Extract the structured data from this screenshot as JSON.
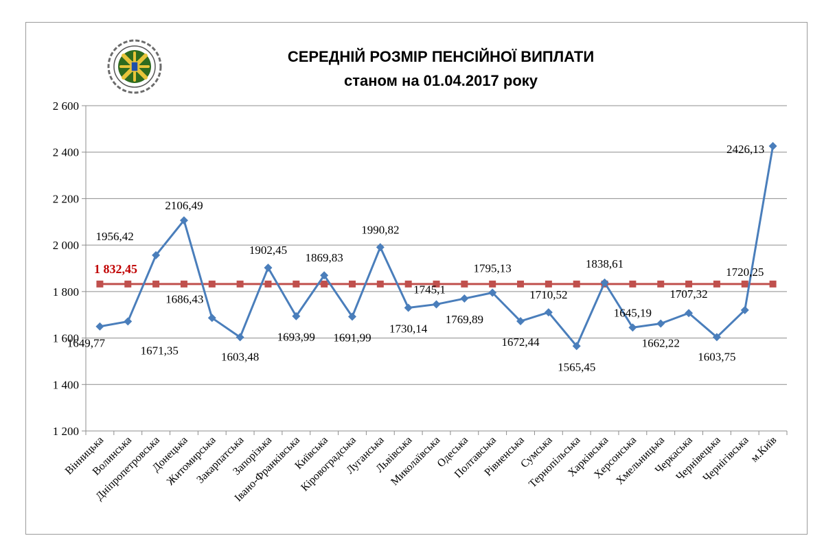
{
  "chart_data": {
    "type": "line",
    "title": "СЕРЕДНІЙ РОЗМІР ПЕНСІЙНОЇ ВИПЛАТИ",
    "subtitle": "станом на 01.04.2017 року",
    "ylim": [
      1200,
      2600
    ],
    "yticks": [
      1200,
      1400,
      1600,
      1800,
      2000,
      2200,
      2400,
      2600
    ],
    "ytick_labels": [
      "1 200",
      "1 400",
      "1 600",
      "1 800",
      "2 000",
      "2 200",
      "2 400",
      "2 600"
    ],
    "grid": true,
    "categories": [
      "Вінницька",
      "Волинська",
      "Дніпропетровська",
      "Донецька",
      "Житомирська",
      "Закарпатська",
      "Запорізька",
      "Івано-Франківська",
      "Київська",
      "Кіровоградська",
      "Луганська",
      "Львівська",
      "Миколаївська",
      "Одеська",
      "Полтавська",
      "Рівненська",
      "Сумська",
      "Тернопільська",
      "Харківська",
      "Херсонська",
      "Хмельницька",
      "Черкаська",
      "Чернівецька",
      "Чернігівська",
      "м.Київ"
    ],
    "series": [
      {
        "color": "#4a7ebb",
        "marker": "diamond",
        "values": [
          1649.77,
          1671.35,
          1956.42,
          2106.49,
          1686.43,
          1603.48,
          1902.45,
          1693.99,
          1869.83,
          1691.99,
          1990.82,
          1730.14,
          1745.1,
          1769.89,
          1795.13,
          1672.44,
          1710.52,
          1565.45,
          1838.61,
          1645.19,
          1662.22,
          1707.32,
          1603.75,
          1720.25,
          2426.13
        ],
        "labels": [
          "1649,77",
          "1671,35",
          "1956,42",
          "2106,49",
          "1686,43",
          "1603,48",
          "1902,45",
          "1693,99",
          "1869,83",
          "1691,99",
          "1990,82",
          "1730,14",
          "1745,1",
          "1769,89",
          "1795,13",
          "1672,44",
          "1710,52",
          "1565,45",
          "1838,61",
          "1645,19",
          "1662,22",
          "1707,32",
          "1603,75",
          "1720,25",
          "2426,13"
        ]
      },
      {
        "color": "#c0504d",
        "marker": "square",
        "value": 1832.45,
        "label": "1 832,45"
      }
    ],
    "logo_icon": "pension-fund-emblem-icon"
  }
}
